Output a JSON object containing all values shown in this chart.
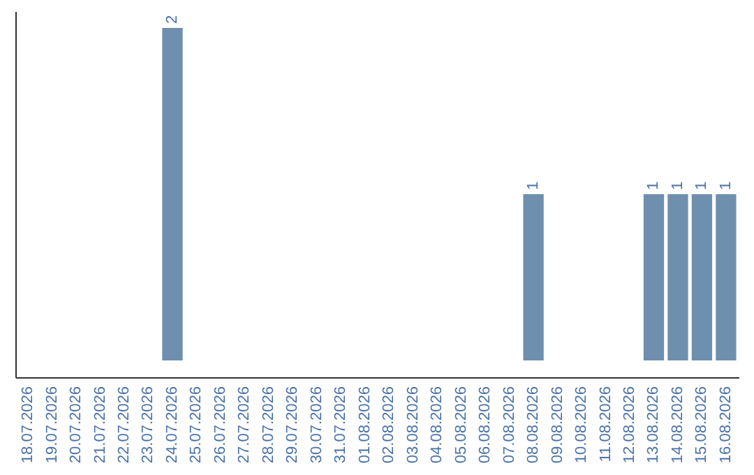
{
  "chart_data": {
    "type": "bar",
    "categories": [
      "18.07.2026",
      "19.07.2026",
      "20.07.2026",
      "21.07.2026",
      "22.07.2026",
      "23.07.2026",
      "24.07.2026",
      "25.07.2026",
      "26.07.2026",
      "27.07.2026",
      "28.07.2026",
      "29.07.2026",
      "30.07.2026",
      "31.07.2026",
      "01.08.2026",
      "02.08.2026",
      "03.08.2026",
      "04.08.2026",
      "05.08.2026",
      "06.08.2026",
      "07.08.2026",
      "08.08.2026",
      "09.08.2026",
      "10.08.2026",
      "11.08.2026",
      "12.08.2026",
      "13.08.2026",
      "14.08.2026",
      "15.08.2026",
      "16.08.2026"
    ],
    "values": [
      0,
      0,
      0,
      0,
      0,
      0,
      2,
      0,
      0,
      0,
      0,
      0,
      0,
      0,
      0,
      0,
      0,
      0,
      0,
      0,
      0,
      1,
      0,
      0,
      0,
      0,
      1,
      1,
      1,
      1
    ],
    "value_labels": [
      null,
      null,
      null,
      null,
      null,
      null,
      "2",
      null,
      null,
      null,
      null,
      null,
      null,
      null,
      null,
      null,
      null,
      null,
      null,
      null,
      null,
      "1",
      null,
      null,
      null,
      null,
      "1",
      "1",
      "1",
      "1"
    ],
    "color": "#6f8fae"
  }
}
